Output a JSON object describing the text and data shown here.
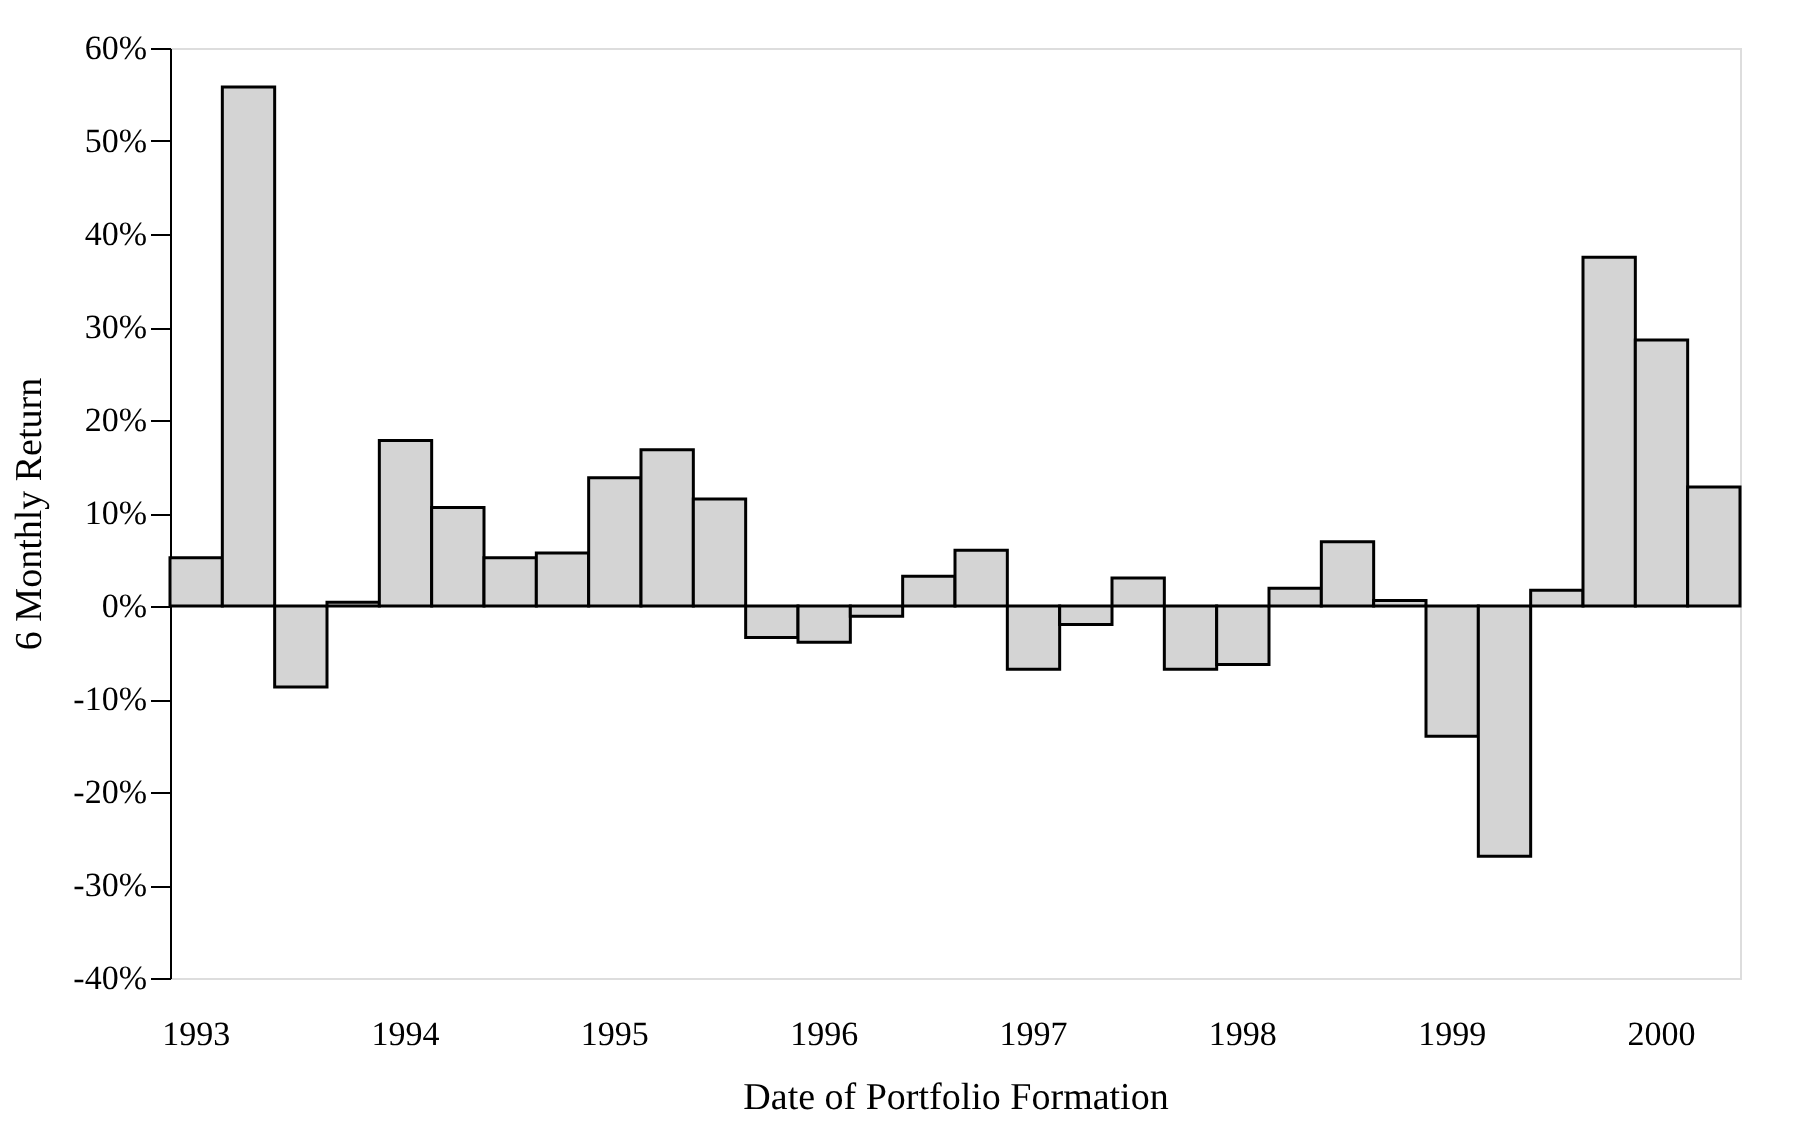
{
  "chart_data": {
    "type": "bar",
    "xlabel": "Date of Portfolio Formation",
    "ylabel": "6 Monthly Return",
    "categories": [
      "1993",
      null,
      null,
      null,
      "1994",
      null,
      null,
      null,
      "1995",
      null,
      null,
      null,
      "1996",
      null,
      null,
      null,
      "1997",
      null,
      null,
      null,
      "1998",
      null,
      null,
      null,
      "1999",
      null,
      null,
      null,
      "2000",
      null
    ],
    "values": [
      5.2,
      55.8,
      -8.7,
      0.4,
      17.8,
      10.6,
      5.2,
      5.7,
      13.8,
      16.8,
      11.5,
      -3.4,
      -3.9,
      -1.1,
      3.2,
      6.0,
      -6.8,
      -2.0,
      3.0,
      -6.8,
      -6.3,
      1.9,
      6.9,
      0.6,
      -14.0,
      -26.9,
      1.7,
      37.5,
      28.6,
      12.8
    ],
    "color": "#d4d4d4",
    "ylim": [
      -40,
      60
    ],
    "yticks": [
      {
        "value": -40,
        "label": "-40%"
      },
      {
        "value": -30,
        "label": "-30%"
      },
      {
        "value": -20,
        "label": "-20%"
      },
      {
        "value": -10,
        "label": "-10%"
      },
      {
        "value": 0,
        "label": "0%"
      },
      {
        "value": 10,
        "label": "10%"
      },
      {
        "value": 20,
        "label": "20%"
      },
      {
        "value": 30,
        "label": "30%"
      },
      {
        "value": 40,
        "label": "40%"
      },
      {
        "value": 50,
        "label": "50%"
      },
      {
        "value": 60,
        "label": "60%"
      }
    ],
    "grid": false
  }
}
